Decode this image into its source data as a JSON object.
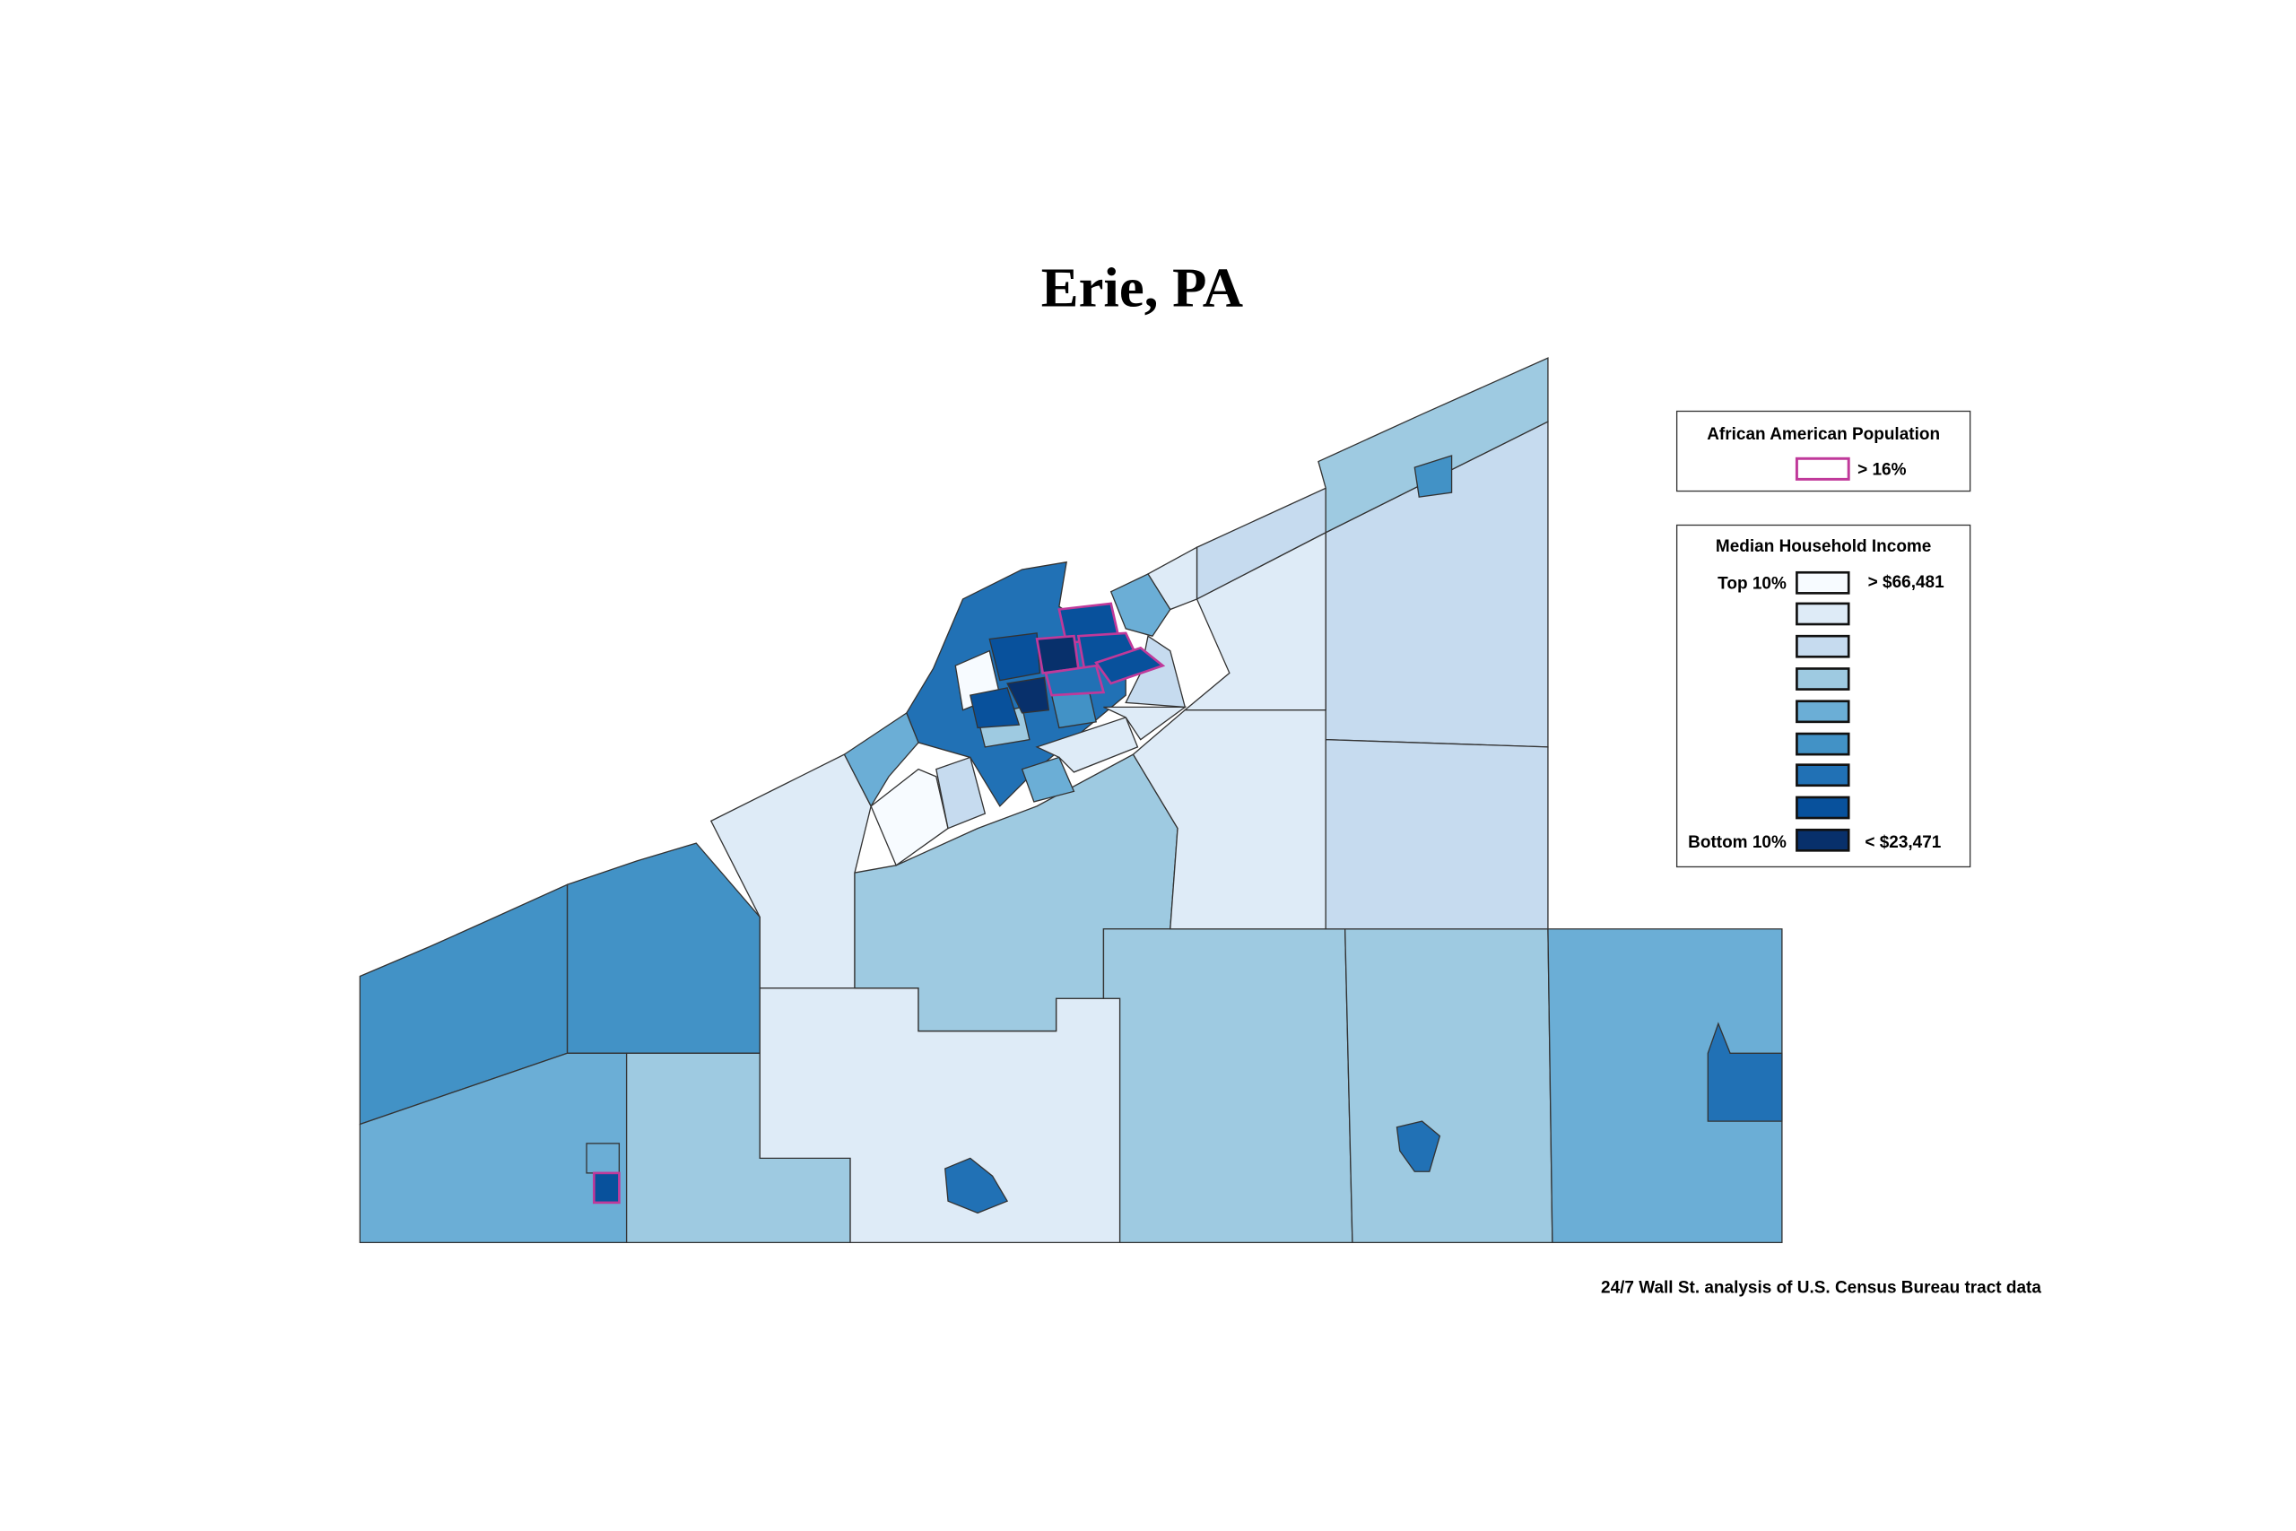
{
  "title": "Erie, PA",
  "legend_population": {
    "title": "African American Population",
    "label": "> 16%"
  },
  "legend_income": {
    "title": "Median Household Income",
    "top": "Top 10%",
    "top_value": "> $66,481",
    "bottom": "Bottom 10%",
    "bottom_value": "< $23,471"
  },
  "source": "24/7 Wall St. analysis of U.S. Census Bureau tract data"
}
